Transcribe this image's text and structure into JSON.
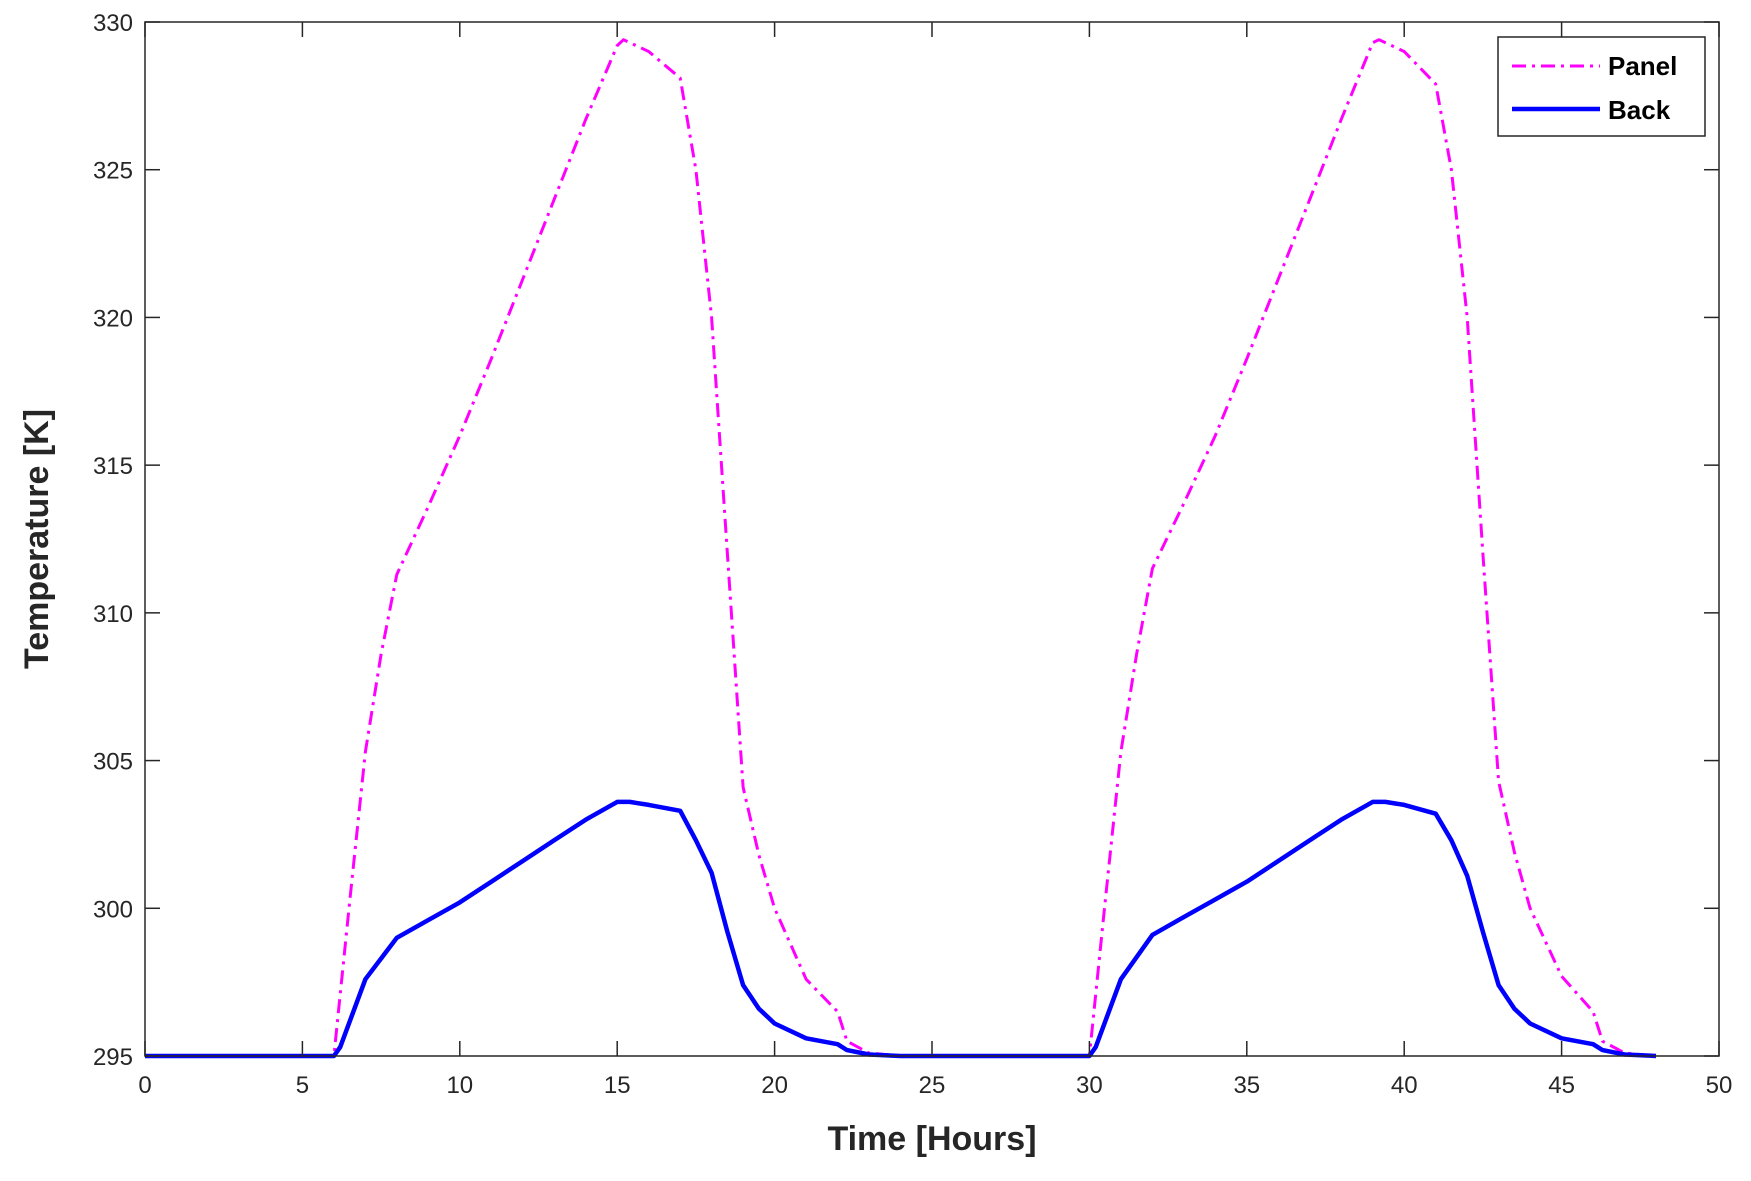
{
  "chart_data": {
    "type": "line",
    "title": "",
    "xlabel": "Time [Hours]",
    "ylabel": "Temperature [K]",
    "xlim": [
      0,
      50
    ],
    "ylim": [
      295,
      330
    ],
    "xticks": [
      0,
      5,
      10,
      15,
      20,
      25,
      30,
      35,
      40,
      45,
      50
    ],
    "yticks": [
      295,
      300,
      305,
      310,
      315,
      320,
      325,
      330
    ],
    "xtick_labels": [
      "0",
      "5",
      "10",
      "15",
      "20",
      "25",
      "30",
      "35",
      "40",
      "45",
      "50"
    ],
    "ytick_labels": [
      "295",
      "300",
      "305",
      "310",
      "315",
      "320",
      "325",
      "330"
    ],
    "grid": false,
    "legend_position": "top-right",
    "series": [
      {
        "name": "Panel",
        "color": "#FF00FF",
        "style": "dash-dot",
        "x": [
          0,
          6,
          6.5,
          7,
          7.5,
          8,
          9,
          10,
          11,
          12,
          13,
          14,
          15,
          15.2,
          16,
          17,
          17.5,
          18,
          18.5,
          19,
          19.5,
          20,
          21,
          22,
          22.3,
          23,
          24,
          25,
          26,
          27,
          28,
          29,
          30,
          30.5,
          31,
          31.5,
          32,
          33,
          34,
          35,
          36,
          37,
          38,
          39,
          39.2,
          40,
          41,
          41.5,
          42,
          42.5,
          43,
          43.5,
          44,
          45,
          46,
          46.3,
          47,
          48
        ],
        "y": [
          295,
          295,
          300.2,
          305.3,
          308.6,
          311.3,
          313.6,
          316.0,
          318.6,
          321.3,
          324.0,
          326.7,
          329.2,
          329.4,
          329.0,
          328.1,
          325.0,
          320.0,
          312.0,
          304.1,
          301.8,
          300.0,
          297.6,
          296.5,
          295.5,
          295.1,
          295.0,
          295.0,
          295.0,
          295.0,
          295.0,
          295.0,
          295,
          300.2,
          305.3,
          308.6,
          311.5,
          313.7,
          316.0,
          318.6,
          321.3,
          324.0,
          326.7,
          329.3,
          329.4,
          329.0,
          327.9,
          325.0,
          320.0,
          312.0,
          304.3,
          301.9,
          300.0,
          297.7,
          296.5,
          295.5,
          295.1,
          295.0
        ]
      },
      {
        "name": "Back",
        "color": "#0000FF",
        "style": "solid",
        "x": [
          0,
          6,
          6.2,
          7,
          8,
          9,
          10,
          11,
          12,
          13,
          14,
          15,
          15.4,
          16,
          17,
          17.5,
          18,
          18.5,
          19,
          19.5,
          20,
          21,
          22,
          22.3,
          23,
          24,
          25,
          26,
          27,
          28,
          29,
          30,
          30.2,
          31,
          32,
          33,
          34,
          35,
          36,
          37,
          38,
          39,
          39.4,
          40,
          41,
          41.5,
          42,
          42.5,
          43,
          43.5,
          44,
          45,
          46,
          46.3,
          47,
          48
        ],
        "y": [
          295,
          295,
          295.3,
          297.6,
          299.0,
          299.6,
          300.2,
          300.9,
          301.6,
          302.3,
          303.0,
          303.6,
          303.6,
          303.5,
          303.3,
          302.3,
          301.2,
          299.2,
          297.4,
          296.6,
          296.1,
          295.6,
          295.4,
          295.2,
          295.05,
          295.0,
          295.0,
          295.0,
          295.0,
          295.0,
          295.0,
          295,
          295.3,
          297.6,
          299.1,
          299.7,
          300.3,
          300.9,
          301.6,
          302.3,
          303.0,
          303.6,
          303.6,
          303.5,
          303.2,
          302.3,
          301.1,
          299.2,
          297.4,
          296.6,
          296.1,
          295.6,
          295.4,
          295.2,
          295.05,
          295.0
        ]
      }
    ]
  }
}
